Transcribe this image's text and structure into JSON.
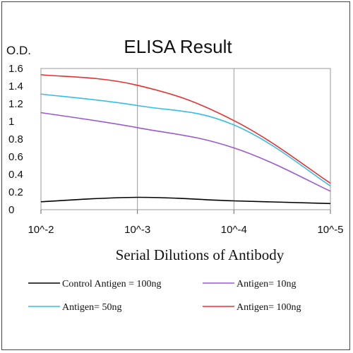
{
  "chart_data": {
    "type": "line",
    "title": "ELISA Result",
    "ylabel": "O.D.",
    "xlabel": "Serial  Dilutions  of Antibody",
    "categories": [
      "10^-2",
      "10^-3",
      "10^-4",
      "10^-5"
    ],
    "ylim": [
      0,
      1.6
    ],
    "yticks": [
      "0",
      "0.2",
      "0.4",
      "0.6",
      "0.8",
      "1",
      "1.2",
      "1.4",
      "1.6"
    ],
    "grid": "vertical",
    "legend_position": "bottom",
    "series": [
      {
        "name": "Control Antigen = 100ng",
        "color": "#000000",
        "values": [
          0.09,
          0.14,
          0.1,
          0.07
        ]
      },
      {
        "name": "Antigen= 10ng",
        "color": "#9b59d0",
        "values": [
          1.1,
          0.93,
          0.7,
          0.21
        ]
      },
      {
        "name": "Antigen= 50ng",
        "color": "#33bde8",
        "values": [
          1.31,
          1.18,
          0.96,
          0.27
        ]
      },
      {
        "name": "Antigen= 100ng",
        "color": "#e8302f",
        "values": [
          1.53,
          1.41,
          1.01,
          0.3
        ]
      }
    ]
  }
}
